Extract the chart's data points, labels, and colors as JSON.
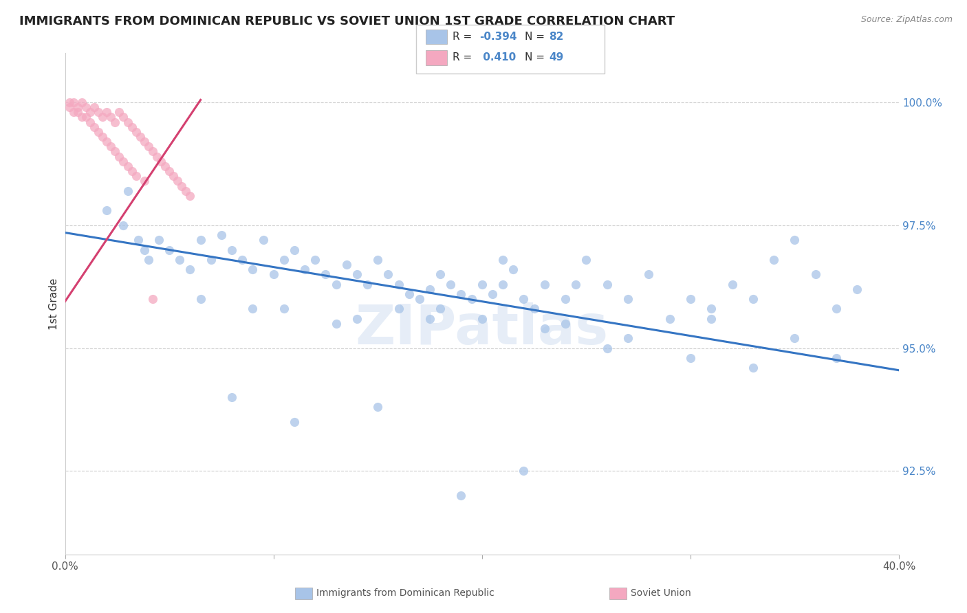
{
  "title": "IMMIGRANTS FROM DOMINICAN REPUBLIC VS SOVIET UNION 1ST GRADE CORRELATION CHART",
  "source": "Source: ZipAtlas.com",
  "ylabel": "1st Grade",
  "ytick_labels": [
    "92.5%",
    "95.0%",
    "97.5%",
    "100.0%"
  ],
  "ytick_values": [
    0.925,
    0.95,
    0.975,
    1.0
  ],
  "xlim": [
    0.0,
    0.4
  ],
  "ylim": [
    0.908,
    1.01
  ],
  "blue_color": "#a8c4e8",
  "pink_color": "#f4a8c0",
  "blue_line_color": "#3575c3",
  "pink_line_color": "#d44070",
  "watermark": "ZIPatlas",
  "blue_scatter_x": [
    0.02,
    0.028,
    0.03,
    0.035,
    0.038,
    0.04,
    0.045,
    0.05,
    0.055,
    0.06,
    0.065,
    0.07,
    0.075,
    0.08,
    0.085,
    0.09,
    0.095,
    0.1,
    0.105,
    0.11,
    0.115,
    0.12,
    0.125,
    0.13,
    0.135,
    0.14,
    0.145,
    0.15,
    0.155,
    0.16,
    0.165,
    0.17,
    0.175,
    0.18,
    0.185,
    0.19,
    0.195,
    0.2,
    0.205,
    0.21,
    0.215,
    0.22,
    0.225,
    0.23,
    0.24,
    0.245,
    0.25,
    0.26,
    0.27,
    0.28,
    0.29,
    0.3,
    0.31,
    0.32,
    0.33,
    0.34,
    0.35,
    0.36,
    0.37,
    0.38,
    0.105,
    0.13,
    0.16,
    0.175,
    0.21,
    0.24,
    0.27,
    0.31,
    0.35,
    0.065,
    0.09,
    0.14,
    0.18,
    0.2,
    0.23,
    0.26,
    0.3,
    0.33,
    0.37,
    0.08,
    0.11,
    0.15,
    0.19,
    0.22
  ],
  "blue_scatter_y": [
    0.978,
    0.975,
    0.982,
    0.972,
    0.97,
    0.968,
    0.972,
    0.97,
    0.968,
    0.966,
    0.972,
    0.968,
    0.973,
    0.97,
    0.968,
    0.966,
    0.972,
    0.965,
    0.968,
    0.97,
    0.966,
    0.968,
    0.965,
    0.963,
    0.967,
    0.965,
    0.963,
    0.968,
    0.965,
    0.963,
    0.961,
    0.96,
    0.962,
    0.965,
    0.963,
    0.961,
    0.96,
    0.963,
    0.961,
    0.968,
    0.966,
    0.96,
    0.958,
    0.963,
    0.96,
    0.963,
    0.968,
    0.963,
    0.96,
    0.965,
    0.956,
    0.96,
    0.958,
    0.963,
    0.96,
    0.968,
    0.972,
    0.965,
    0.958,
    0.962,
    0.958,
    0.955,
    0.958,
    0.956,
    0.963,
    0.955,
    0.952,
    0.956,
    0.952,
    0.96,
    0.958,
    0.956,
    0.958,
    0.956,
    0.954,
    0.95,
    0.948,
    0.946,
    0.948,
    0.94,
    0.935,
    0.938,
    0.92,
    0.925
  ],
  "pink_scatter_x": [
    0.002,
    0.004,
    0.006,
    0.008,
    0.01,
    0.012,
    0.014,
    0.016,
    0.018,
    0.02,
    0.022,
    0.024,
    0.026,
    0.028,
    0.03,
    0.032,
    0.034,
    0.036,
    0.038,
    0.04,
    0.042,
    0.044,
    0.046,
    0.048,
    0.05,
    0.052,
    0.054,
    0.056,
    0.058,
    0.06,
    0.002,
    0.004,
    0.006,
    0.008,
    0.01,
    0.012,
    0.014,
    0.016,
    0.018,
    0.02,
    0.022,
    0.024,
    0.026,
    0.028,
    0.03,
    0.032,
    0.034,
    0.038,
    0.042
  ],
  "pink_scatter_y": [
    1.0,
    1.0,
    0.999,
    1.0,
    0.999,
    0.998,
    0.999,
    0.998,
    0.997,
    0.998,
    0.997,
    0.996,
    0.998,
    0.997,
    0.996,
    0.995,
    0.994,
    0.993,
    0.992,
    0.991,
    0.99,
    0.989,
    0.988,
    0.987,
    0.986,
    0.985,
    0.984,
    0.983,
    0.982,
    0.981,
    0.999,
    0.998,
    0.998,
    0.997,
    0.997,
    0.996,
    0.995,
    0.994,
    0.993,
    0.992,
    0.991,
    0.99,
    0.989,
    0.988,
    0.987,
    0.986,
    0.985,
    0.984,
    0.96
  ],
  "blue_line_x": [
    0.0,
    0.4
  ],
  "blue_line_y": [
    0.9735,
    0.9455
  ],
  "pink_line_x": [
    0.0,
    0.065
  ],
  "pink_line_y": [
    0.9595,
    1.0005
  ],
  "grid_color": "#cccccc",
  "background_color": "#ffffff",
  "title_fontsize": 13,
  "axis_fontsize": 11
}
